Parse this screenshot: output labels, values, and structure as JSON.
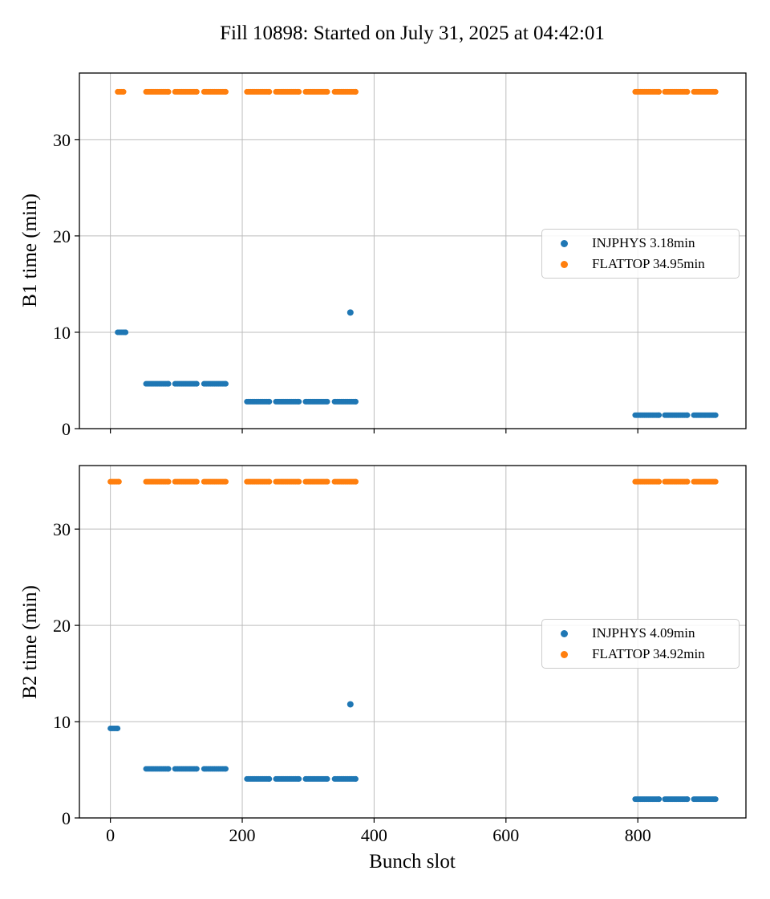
{
  "title": "Fill 10898: Started on July 31, 2025 at 04:42:01",
  "chart_data": [
    {
      "id": "b1",
      "type": "scatter",
      "xlabel": "",
      "ylabel": "B1 time (min)",
      "xlim": [
        -47,
        964
      ],
      "ylim": [
        0,
        36.9
      ],
      "xticks": [
        0,
        200,
        400,
        600,
        800
      ],
      "yticks": [
        0,
        10,
        20,
        30
      ],
      "grid": true,
      "legend_position": "center right",
      "series": [
        {
          "name": "INJPHYS",
          "legend_label": "INJPHYS 3.18min",
          "color": "#1f77b4",
          "segments": [
            [
              11,
              23,
              10.0
            ],
            [
              54,
              88,
              4.65
            ],
            [
              98,
              131,
              4.65
            ],
            [
              142,
              175,
              4.65
            ],
            [
              207,
              241,
              2.8
            ],
            [
              251,
              286,
              2.8
            ],
            [
              296,
              329,
              2.8
            ],
            [
              340,
              372,
              2.8
            ],
            [
              796,
              832,
              1.4
            ],
            [
              841,
              875,
              1.4
            ],
            [
              885,
              918,
              1.4
            ]
          ],
          "points": [
            [
              364,
              12.05
            ]
          ]
        },
        {
          "name": "FLATTOP",
          "legend_label": "FLATTOP 34.95min",
          "color": "#ff7f0e",
          "segments": [
            [
              11,
              20,
              34.95
            ],
            [
              54,
              88,
              34.95
            ],
            [
              98,
              131,
              34.95
            ],
            [
              142,
              175,
              34.95
            ],
            [
              207,
              241,
              34.95
            ],
            [
              251,
              286,
              34.95
            ],
            [
              296,
              329,
              34.95
            ],
            [
              340,
              372,
              34.95
            ],
            [
              796,
              832,
              34.95
            ],
            [
              841,
              875,
              34.95
            ],
            [
              885,
              918,
              34.95
            ]
          ],
          "points": []
        }
      ]
    },
    {
      "id": "b2",
      "type": "scatter",
      "xlabel": "Bunch slot",
      "ylabel": "B2 time (min)",
      "xlim": [
        -47,
        964
      ],
      "ylim": [
        0,
        36.6
      ],
      "xticks": [
        0,
        200,
        400,
        600,
        800
      ],
      "yticks": [
        0,
        10,
        20,
        30
      ],
      "grid": true,
      "legend_position": "center right",
      "series": [
        {
          "name": "INJPHYS",
          "legend_label": "INJPHYS 4.09min",
          "color": "#1f77b4",
          "segments": [
            [
              0,
              11,
              9.3
            ],
            [
              54,
              88,
              5.1
            ],
            [
              98,
              131,
              5.1
            ],
            [
              142,
              175,
              5.1
            ],
            [
              207,
              241,
              4.05
            ],
            [
              251,
              286,
              4.05
            ],
            [
              296,
              329,
              4.05
            ],
            [
              340,
              372,
              4.05
            ],
            [
              796,
              832,
              1.95
            ],
            [
              841,
              875,
              1.95
            ],
            [
              885,
              918,
              1.95
            ]
          ],
          "points": [
            [
              364,
              11.8
            ]
          ]
        },
        {
          "name": "FLATTOP",
          "legend_label": "FLATTOP 34.92min",
          "color": "#ff7f0e",
          "segments": [
            [
              0,
              13,
              34.92
            ],
            [
              54,
              88,
              34.92
            ],
            [
              98,
              131,
              34.92
            ],
            [
              142,
              175,
              34.92
            ],
            [
              207,
              241,
              34.92
            ],
            [
              251,
              286,
              34.92
            ],
            [
              296,
              329,
              34.92
            ],
            [
              340,
              372,
              34.92
            ],
            [
              796,
              832,
              34.92
            ],
            [
              841,
              875,
              34.92
            ],
            [
              885,
              918,
              34.92
            ]
          ],
          "points": []
        }
      ]
    }
  ]
}
